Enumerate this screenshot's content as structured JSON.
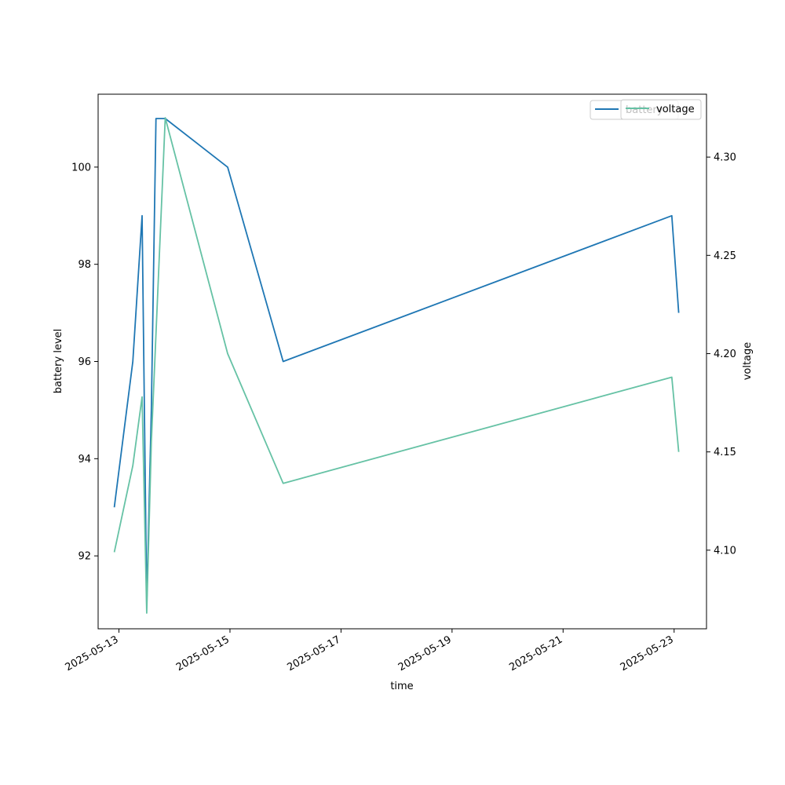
{
  "chart_data": {
    "type": "line",
    "xlabel": "time",
    "ylabel": "battery level",
    "y2label": "voltage",
    "xlim": [
      "2025-05-12T15:00",
      "2025-05-23T14:00"
    ],
    "ylim": [
      90.5,
      101.5
    ],
    "y2lim": [
      4.06,
      4.332
    ],
    "x_ticks": [
      "2025-05-13",
      "2025-05-15",
      "2025-05-17",
      "2025-05-19",
      "2025-05-21",
      "2025-05-23"
    ],
    "y_ticks": [
      92,
      94,
      96,
      98,
      100
    ],
    "y2_ticks": [
      "4.10",
      "4.15",
      "4.20",
      "4.25",
      "4.30"
    ],
    "grid": false,
    "legend_placement": "top-right",
    "series": [
      {
        "name": "battery",
        "axis": "left",
        "color": "#1f77b4",
        "points": [
          {
            "x": "2025-05-12T22:00",
            "y": 93
          },
          {
            "x": "2025-05-13T06:00",
            "y": 96
          },
          {
            "x": "2025-05-13T10:00",
            "y": 99
          },
          {
            "x": "2025-05-13T12:00",
            "y": 91
          },
          {
            "x": "2025-05-13T14:00",
            "y": 95
          },
          {
            "x": "2025-05-13T16:00",
            "y": 101
          },
          {
            "x": "2025-05-13T20:00",
            "y": 101
          },
          {
            "x": "2025-05-14T23:00",
            "y": 100
          },
          {
            "x": "2025-05-15T23:00",
            "y": 96
          },
          {
            "x": "2025-05-22T23:00",
            "y": 99
          },
          {
            "x": "2025-05-23T02:00",
            "y": 97
          }
        ]
      },
      {
        "name": "voltage",
        "axis": "right",
        "color": "#66c2a5",
        "points": [
          {
            "x": "2025-05-12T22:00",
            "y": 4.099
          },
          {
            "x": "2025-05-13T06:00",
            "y": 4.143
          },
          {
            "x": "2025-05-13T10:00",
            "y": 4.178
          },
          {
            "x": "2025-05-13T12:00",
            "y": 4.068
          },
          {
            "x": "2025-05-13T14:00",
            "y": 4.155
          },
          {
            "x": "2025-05-13T16:00",
            "y": 4.21
          },
          {
            "x": "2025-05-13T18:00",
            "y": 4.265
          },
          {
            "x": "2025-05-13T20:00",
            "y": 4.32
          },
          {
            "x": "2025-05-14T23:00",
            "y": 4.2
          },
          {
            "x": "2025-05-15T23:00",
            "y": 4.134
          },
          {
            "x": "2025-05-22T23:00",
            "y": 4.188
          },
          {
            "x": "2025-05-23T02:00",
            "y": 4.15
          }
        ]
      }
    ]
  }
}
